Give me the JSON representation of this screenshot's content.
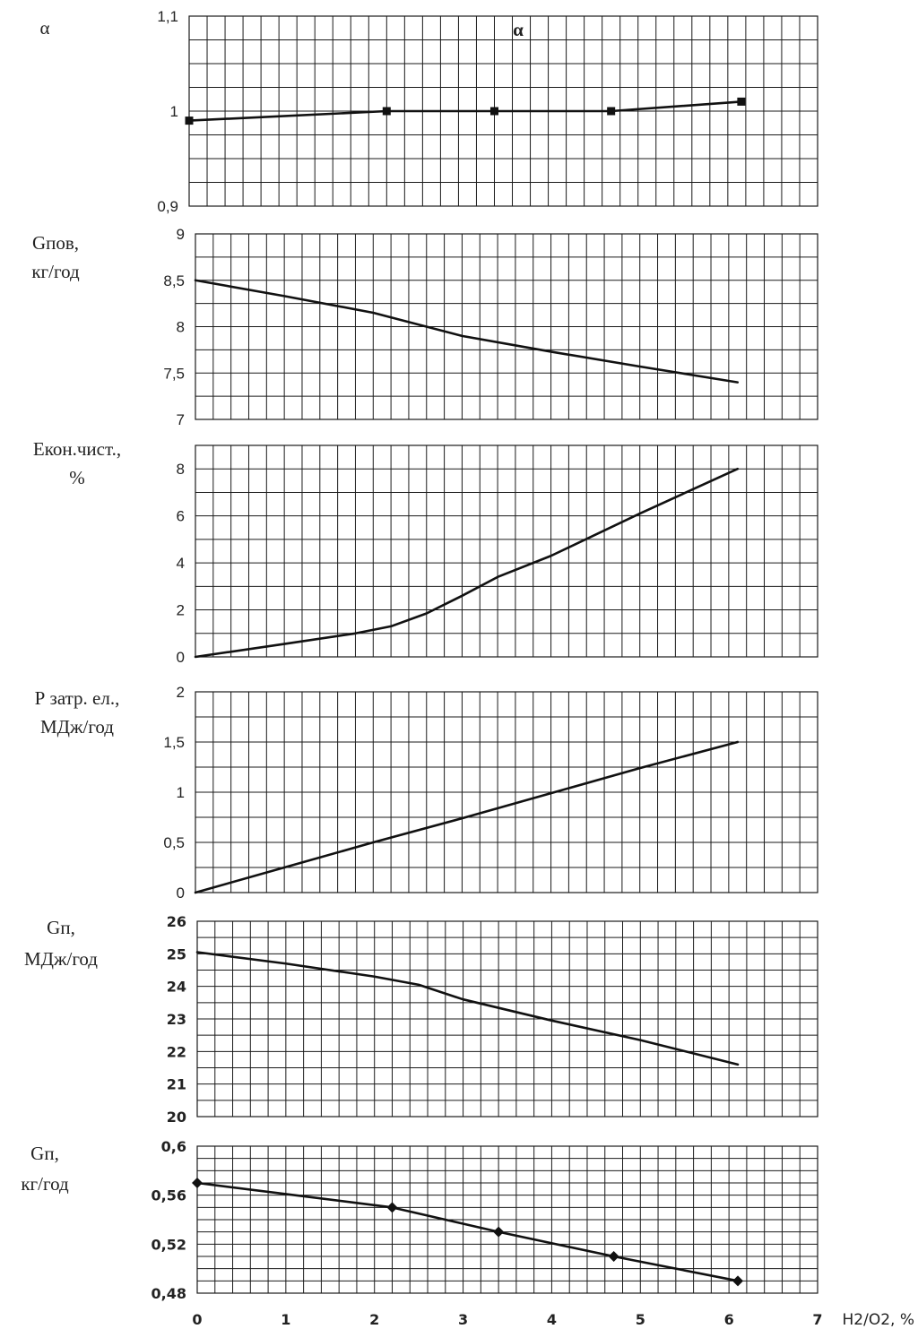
{
  "chart_data": [
    {
      "type": "line",
      "title": "α",
      "ylabel": [
        "α"
      ],
      "ylim": [
        0.9,
        1.1
      ],
      "yticks": [
        "0,9",
        "1",
        "1,1"
      ],
      "xlim": [
        0,
        7
      ],
      "markers": "square",
      "series": [
        {
          "x": [
            0,
            2.2,
            3.4,
            4.7,
            6.15
          ],
          "values": [
            0.99,
            1.0,
            1.0,
            1.0,
            1.01
          ]
        }
      ]
    },
    {
      "type": "line",
      "title": "",
      "ylabel": [
        "Gпов,",
        "кг/год"
      ],
      "ylim": [
        7,
        9
      ],
      "yticks": [
        "7",
        "7,5",
        "8",
        "8,5",
        "9"
      ],
      "xlim": [
        0,
        7
      ],
      "markers": "none",
      "series": [
        {
          "x": [
            0,
            1,
            2,
            3,
            4,
            5,
            6.1
          ],
          "values": [
            8.5,
            8.33,
            8.15,
            7.9,
            7.73,
            7.57,
            7.4
          ]
        }
      ]
    },
    {
      "type": "line",
      "title": "",
      "ylabel": [
        "Екон.чист.,",
        "%"
      ],
      "ylim": [
        0,
        9
      ],
      "yticks": [
        "0",
        "2",
        "4",
        "6",
        "8"
      ],
      "xlim": [
        0,
        7
      ],
      "markers": "none",
      "series": [
        {
          "x": [
            0,
            1,
            1.8,
            2.2,
            2.6,
            3,
            3.4,
            4,
            5,
            6.1
          ],
          "values": [
            0,
            0.55,
            1.0,
            1.3,
            1.85,
            2.6,
            3.4,
            4.3,
            6.1,
            8.0
          ]
        }
      ]
    },
    {
      "type": "line",
      "title": "",
      "ylabel": [
        "Р затр. ел.,",
        "МДж/год"
      ],
      "ylim": [
        0,
        2
      ],
      "yticks": [
        "0",
        "0,5",
        "1",
        "1,5",
        "2"
      ],
      "xlim": [
        0,
        7
      ],
      "markers": "none",
      "series": [
        {
          "x": [
            0,
            1,
            2,
            3,
            4,
            5,
            6.1
          ],
          "values": [
            0,
            0.25,
            0.5,
            0.74,
            0.99,
            1.24,
            1.5
          ]
        }
      ]
    },
    {
      "type": "line",
      "title": "",
      "ylabel": [
        "Gп,",
        "МДж/год"
      ],
      "ylim": [
        20,
        26
      ],
      "yticks": [
        "20",
        "21",
        "22",
        "23",
        "24",
        "25",
        "26"
      ],
      "xlim": [
        0,
        7
      ],
      "markers": "none",
      "series": [
        {
          "x": [
            0,
            1,
            2,
            2.5,
            3,
            4,
            5,
            6.1
          ],
          "values": [
            25.05,
            24.7,
            24.3,
            24.05,
            23.6,
            22.95,
            22.35,
            21.6
          ]
        }
      ]
    },
    {
      "type": "line",
      "title": "",
      "ylabel": [
        "Gп,",
        "кг/год"
      ],
      "ylim": [
        0.48,
        0.6
      ],
      "yticks": [
        "0,48",
        "0,52",
        "0,56",
        "0,6"
      ],
      "xlim": [
        0,
        7
      ],
      "markers": "diamond",
      "xticks": [
        "0",
        "1",
        "2",
        "3",
        "4",
        "5",
        "6",
        "7"
      ],
      "xlabel": "H2/O2, %",
      "series": [
        {
          "x": [
            0,
            2.2,
            3.4,
            4.7,
            6.1
          ],
          "values": [
            0.57,
            0.55,
            0.53,
            0.51,
            0.49
          ]
        }
      ]
    }
  ]
}
